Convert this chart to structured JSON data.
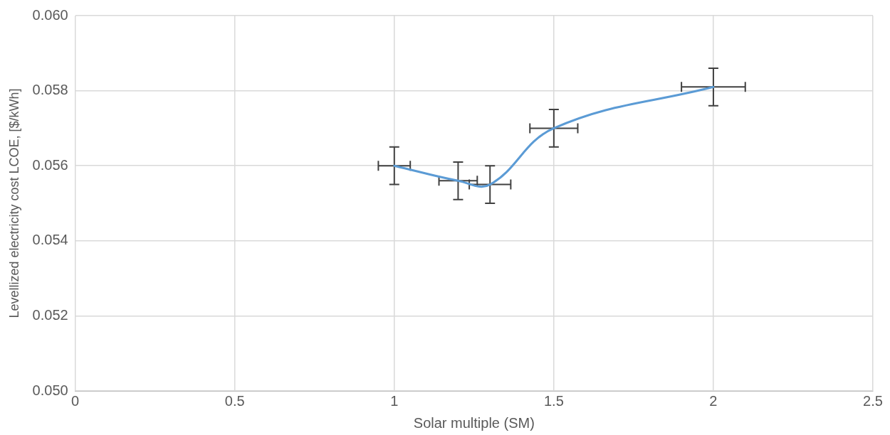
{
  "chart_data": {
    "type": "line",
    "xlabel": "Solar multiple (SM)",
    "ylabel": "Levellized electricity cost LCOE, [$/kWh]",
    "x": [
      1,
      1.2,
      1.3,
      1.5,
      2
    ],
    "series": [
      {
        "color": "#5b9bd5",
        "values": [
          0.056,
          0.0556,
          0.0555,
          0.057,
          0.0581
        ],
        "errors": [
          0.0005,
          0.0005,
          0.0005,
          0.0005,
          0.0005
        ],
        "xerrors": [
          0.05,
          0.06,
          0.065,
          0.075,
          0.1
        ]
      }
    ],
    "xlim": [
      0,
      2.5
    ],
    "xticks": [
      0,
      0.5,
      1,
      1.5,
      2,
      {
        "value": 2.5,
        "label": "2.5"
      }
    ],
    "ylim": [
      0.05,
      0.06
    ],
    "yticks": [
      {
        "value": 0.05,
        "label": "0.050"
      },
      {
        "value": 0.052,
        "label": "0.052"
      },
      {
        "value": 0.054,
        "label": "0.054"
      },
      {
        "value": 0.056,
        "label": "0.056"
      },
      {
        "value": 0.058,
        "label": "0.058"
      },
      {
        "value": 0.06,
        "label": "0.060"
      }
    ],
    "grid": true,
    "marker": "none",
    "line_style": "solid",
    "legend": false
  }
}
